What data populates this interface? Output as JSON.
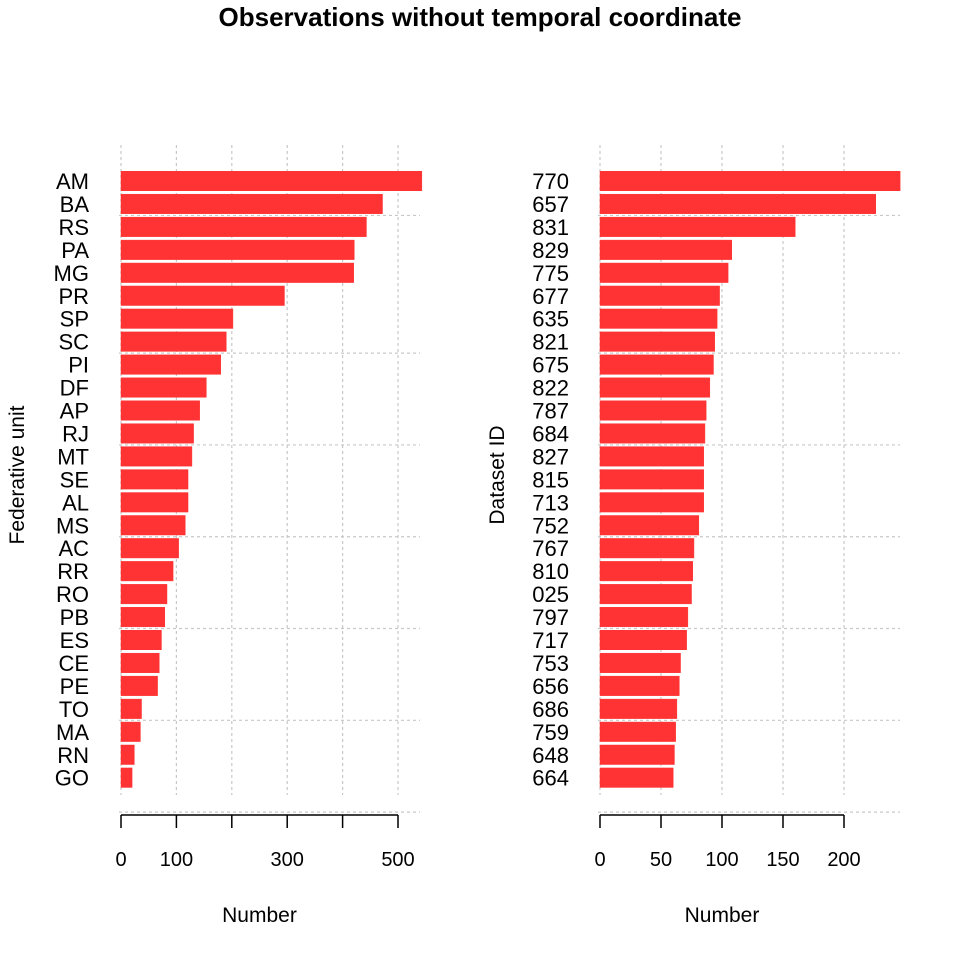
{
  "title": "Observations without temporal coordinate",
  "colors": {
    "bar": "#FF3333",
    "grid": "#c8c8c8",
    "axis": "#000000"
  },
  "chart_data": [
    {
      "type": "bar",
      "orientation": "horizontal",
      "ylabel": "Federative unit",
      "xlabel": "Number",
      "xlim": [
        0,
        540
      ],
      "xticks": [
        0,
        100,
        300,
        500
      ],
      "xtick_marks": [
        0,
        100,
        200,
        300,
        400,
        500
      ],
      "grid": true,
      "categories": [
        "AM",
        "BA",
        "RS",
        "PA",
        "MG",
        "PR",
        "SP",
        "SC",
        "PI",
        "DF",
        "AP",
        "RJ",
        "MT",
        "SE",
        "AL",
        "MS",
        "AC",
        "RR",
        "RO",
        "PB",
        "ES",
        "CE",
        "PE",
        "TO",
        "MA",
        "RN",
        "GO"
      ],
      "values": [
        543,
        472,
        443,
        421,
        420,
        295,
        202,
        190,
        180,
        154,
        142,
        131,
        128,
        121,
        121,
        116,
        104,
        94,
        83,
        79,
        73,
        69,
        66,
        37,
        35,
        24,
        20
      ]
    },
    {
      "type": "bar",
      "orientation": "horizontal",
      "ylabel": "Dataset ID",
      "xlabel": "Number",
      "xlim": [
        0,
        245
      ],
      "xticks": [
        0,
        50,
        100,
        150,
        200
      ],
      "xtick_marks": [
        0,
        50,
        100,
        150,
        200
      ],
      "grid": true,
      "categories": [
        "770",
        "657",
        "831",
        "829",
        "775",
        "677",
        "635",
        "821",
        "675",
        "822",
        "787",
        "684",
        "827",
        "815",
        "713",
        "752",
        "767",
        "810",
        "025",
        "797",
        "717",
        "753",
        "656",
        "686",
        "759",
        "648",
        "664"
      ],
      "values": [
        246,
        226,
        160,
        108,
        105,
        98,
        96,
        94,
        93,
        90,
        87,
        86,
        85,
        85,
        85,
        81,
        77,
        76,
        75,
        72,
        71,
        66,
        65,
        63,
        62,
        61,
        60
      ]
    }
  ]
}
